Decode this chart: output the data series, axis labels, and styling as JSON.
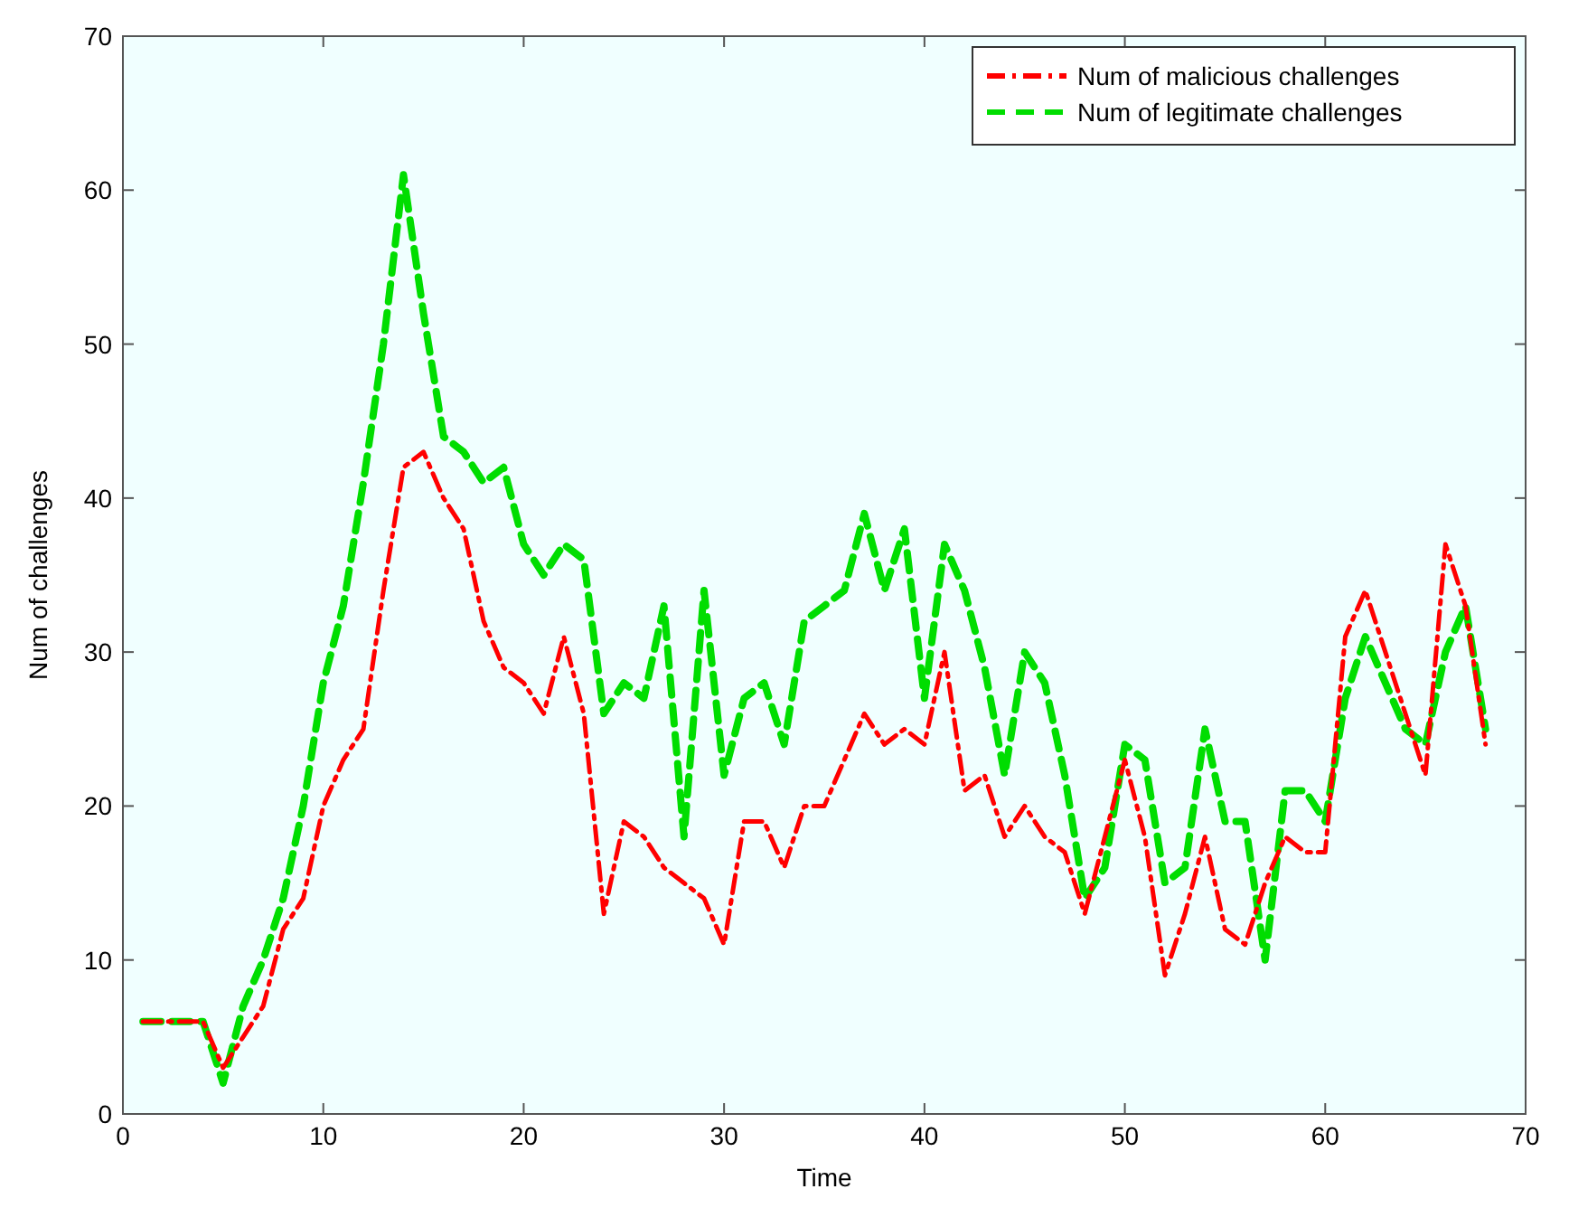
{
  "chart_data": {
    "type": "line",
    "xlabel": "Time",
    "ylabel": "Num of challenges",
    "xlim": [
      0,
      70
    ],
    "ylim": [
      0,
      70
    ],
    "xticks": [
      0,
      10,
      20,
      30,
      40,
      50,
      60,
      70
    ],
    "yticks": [
      0,
      10,
      20,
      30,
      40,
      50,
      60,
      70
    ],
    "grid": false,
    "legend": "top right",
    "marker": "none",
    "x": [
      1,
      2,
      3,
      4,
      5,
      6,
      7,
      8,
      9,
      10,
      11,
      12,
      13,
      14,
      15,
      16,
      17,
      18,
      19,
      20,
      21,
      22,
      23,
      24,
      25,
      26,
      27,
      28,
      29,
      30,
      31,
      32,
      33,
      34,
      35,
      36,
      37,
      38,
      39,
      40,
      41,
      42,
      43,
      44,
      45,
      46,
      47,
      48,
      49,
      50,
      51,
      52,
      53,
      54,
      55,
      56,
      57,
      58,
      59,
      60,
      61,
      62,
      63,
      64,
      65,
      66,
      67,
      68
    ],
    "series": [
      {
        "name": "Num of malicious challenges",
        "color": "#ff0000",
        "line_style": "dashdot",
        "values": [
          6,
          6,
          6,
          6,
          3,
          5,
          7,
          12,
          14,
          20,
          23,
          25,
          34,
          42,
          43,
          40,
          38,
          32,
          29,
          28,
          26,
          31,
          26,
          13,
          19,
          18,
          16,
          15,
          14,
          11,
          19,
          19,
          16,
          20,
          20,
          23,
          26,
          24,
          25,
          24,
          30,
          21,
          22,
          18,
          20,
          18,
          17,
          13,
          18,
          23,
          18,
          9,
          13,
          18,
          12,
          11,
          15,
          18,
          17,
          17,
          31,
          34,
          30,
          26,
          22,
          37,
          33,
          24
        ]
      },
      {
        "name": "Num of legitimate challenges",
        "color": "#00dd00",
        "line_style": "dashed",
        "values": [
          6,
          6,
          6,
          6,
          2,
          7,
          10,
          14,
          20,
          28,
          33,
          41,
          50,
          61,
          52,
          44,
          43,
          41,
          42,
          37,
          35,
          37,
          36,
          26,
          28,
          27,
          33,
          18,
          34,
          22,
          27,
          28,
          24,
          32,
          33,
          34,
          39,
          34,
          38,
          27,
          37,
          34,
          29,
          22,
          30,
          28,
          22,
          14,
          16,
          24,
          23,
          15,
          16,
          25,
          19,
          19,
          10,
          21,
          21,
          19,
          27,
          31,
          28,
          25,
          24,
          30,
          33,
          25
        ]
      }
    ]
  }
}
